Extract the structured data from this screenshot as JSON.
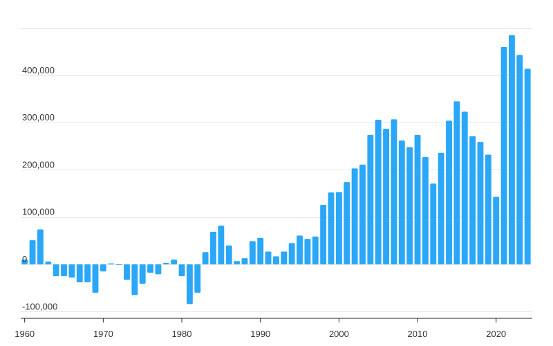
{
  "chart_data": {
    "type": "bar",
    "title": "",
    "xlabel": "",
    "ylabel": "",
    "x": [
      1960,
      1961,
      1962,
      1963,
      1964,
      1965,
      1966,
      1967,
      1968,
      1969,
      1970,
      1971,
      1972,
      1973,
      1974,
      1975,
      1976,
      1977,
      1978,
      1979,
      1980,
      1981,
      1982,
      1983,
      1984,
      1985,
      1986,
      1987,
      1988,
      1989,
      1990,
      1991,
      1992,
      1993,
      1994,
      1995,
      1996,
      1997,
      1998,
      1999,
      2000,
      2001,
      2002,
      2003,
      2004,
      2005,
      2006,
      2007,
      2008,
      2009,
      2010,
      2011,
      2012,
      2013,
      2014,
      2015,
      2016,
      2017,
      2018,
      2019,
      2020,
      2021,
      2022,
      2023,
      2024
    ],
    "values": [
      10000,
      51000,
      74000,
      6000,
      -25000,
      -25000,
      -28000,
      -38000,
      -38000,
      -60000,
      -15000,
      2000,
      -1000,
      -33000,
      -65000,
      -41000,
      -18000,
      -21000,
      3000,
      10000,
      -25000,
      -84000,
      -60000,
      26000,
      69000,
      82000,
      40000,
      7000,
      13000,
      49000,
      56000,
      27000,
      17000,
      27000,
      45000,
      61000,
      54000,
      59000,
      126000,
      152000,
      153000,
      174000,
      203000,
      211000,
      274000,
      306000,
      287000,
      307000,
      262000,
      248000,
      274000,
      227000,
      171000,
      236000,
      304000,
      345000,
      323000,
      271000,
      259000,
      232000,
      143000,
      460000,
      485000,
      443000,
      414000
    ],
    "color": "#2aa7f7",
    "ylim": [
      -115000,
      500000
    ],
    "xlim": [
      1959.5,
      2024.6
    ],
    "yticks": [
      -100000,
      0,
      100000,
      200000,
      300000,
      400000
    ],
    "ytick_labels": [
      "-100,000",
      "0",
      "100,000",
      "200,000",
      "300,000",
      "400,000"
    ],
    "xticks": [
      1960,
      1970,
      1980,
      1990,
      2000,
      2010,
      2020
    ],
    "xtick_labels": [
      "1960",
      "1970",
      "1980",
      "1990",
      "2000",
      "2010",
      "2020"
    ],
    "grid": true,
    "legend": "none"
  }
}
